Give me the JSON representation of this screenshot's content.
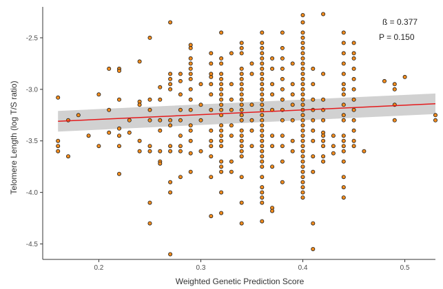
{
  "chart_data": {
    "type": "scatter",
    "title": "",
    "xlabel": "Weighted Genetic Prediction Score",
    "ylabel": "Telomere Length (log T/S ratio)",
    "xlim": [
      0.145,
      0.53
    ],
    "ylim": [
      -4.65,
      -2.2
    ],
    "x_ticks": [
      0.2,
      0.3,
      0.4,
      0.5
    ],
    "y_ticks": [
      -2.5,
      -3.0,
      -3.5,
      -4.0,
      -4.5
    ],
    "x_tick_labels": [
      "0.2",
      "0.3",
      "0.4",
      "0.5"
    ],
    "y_tick_labels": [
      "-2.5",
      "-3.0",
      "-3.5",
      "-4.0",
      "-4.5"
    ],
    "grid": false,
    "annotations": [
      "ß = 0.377",
      "P = 0.150"
    ],
    "regression": {
      "x": [
        0.16,
        0.53
      ],
      "y": [
        -3.31,
        -3.14
      ],
      "ci_lower": [
        -3.41,
        -3.24
      ],
      "ci_upper": [
        -3.21,
        -3.04
      ],
      "line_color": "#e41a1c",
      "band_color": "#cccccc"
    },
    "point_color": "#f28c1e",
    "point_edge_color": "#1a1a1a",
    "points": [
      [
        0.16,
        -3.08
      ],
      [
        0.16,
        -3.5
      ],
      [
        0.16,
        -3.55
      ],
      [
        0.16,
        -3.6
      ],
      [
        0.17,
        -3.3
      ],
      [
        0.17,
        -3.65
      ],
      [
        0.18,
        -3.25
      ],
      [
        0.19,
        -3.45
      ],
      [
        0.2,
        -3.05
      ],
      [
        0.2,
        -3.55
      ],
      [
        0.21,
        -2.8
      ],
      [
        0.21,
        -3.2
      ],
      [
        0.21,
        -3.42
      ],
      [
        0.22,
        -2.8
      ],
      [
        0.22,
        -2.82
      ],
      [
        0.22,
        -3.1
      ],
      [
        0.22,
        -3.38
      ],
      [
        0.22,
        -3.45
      ],
      [
        0.22,
        -3.55
      ],
      [
        0.22,
        -3.82
      ],
      [
        0.23,
        -3.3
      ],
      [
        0.23,
        -3.42
      ],
      [
        0.24,
        -2.73
      ],
      [
        0.24,
        -3.12
      ],
      [
        0.24,
        -3.15
      ],
      [
        0.24,
        -3.5
      ],
      [
        0.24,
        -3.6
      ],
      [
        0.25,
        -2.5
      ],
      [
        0.25,
        -3.1
      ],
      [
        0.25,
        -3.2
      ],
      [
        0.25,
        -3.3
      ],
      [
        0.25,
        -3.55
      ],
      [
        0.25,
        -3.6
      ],
      [
        0.25,
        -4.1
      ],
      [
        0.25,
        -4.3
      ],
      [
        0.26,
        -2.98
      ],
      [
        0.26,
        -3.1
      ],
      [
        0.26,
        -3.3
      ],
      [
        0.26,
        -3.4
      ],
      [
        0.26,
        -3.6
      ],
      [
        0.26,
        -3.7
      ],
      [
        0.26,
        -3.72
      ],
      [
        0.27,
        -2.35
      ],
      [
        0.27,
        -2.85
      ],
      [
        0.27,
        -2.9
      ],
      [
        0.27,
        -2.95
      ],
      [
        0.27,
        -3.0
      ],
      [
        0.27,
        -3.3
      ],
      [
        0.27,
        -3.35
      ],
      [
        0.27,
        -3.55
      ],
      [
        0.27,
        -3.6
      ],
      [
        0.27,
        -3.9
      ],
      [
        0.27,
        -4.0
      ],
      [
        0.27,
        -4.6
      ],
      [
        0.28,
        -2.85
      ],
      [
        0.28,
        -2.92
      ],
      [
        0.28,
        -3.05
      ],
      [
        0.28,
        -3.2
      ],
      [
        0.28,
        -3.3
      ],
      [
        0.28,
        -3.45
      ],
      [
        0.28,
        -3.55
      ],
      [
        0.28,
        -3.6
      ],
      [
        0.28,
        -3.85
      ],
      [
        0.29,
        -2.57
      ],
      [
        0.29,
        -2.6
      ],
      [
        0.29,
        -2.7
      ],
      [
        0.29,
        -2.75
      ],
      [
        0.29,
        -2.8
      ],
      [
        0.29,
        -2.85
      ],
      [
        0.29,
        -2.9
      ],
      [
        0.29,
        -3.0
      ],
      [
        0.29,
        -3.1
      ],
      [
        0.29,
        -3.2
      ],
      [
        0.29,
        -3.35
      ],
      [
        0.29,
        -3.4
      ],
      [
        0.29,
        -3.5
      ],
      [
        0.29,
        -3.62
      ],
      [
        0.29,
        -3.8
      ],
      [
        0.3,
        -2.95
      ],
      [
        0.3,
        -3.15
      ],
      [
        0.3,
        -3.3
      ],
      [
        0.3,
        -3.6
      ],
      [
        0.31,
        -2.65
      ],
      [
        0.31,
        -2.75
      ],
      [
        0.31,
        -2.85
      ],
      [
        0.31,
        -2.88
      ],
      [
        0.31,
        -2.95
      ],
      [
        0.31,
        -3.05
      ],
      [
        0.31,
        -3.2
      ],
      [
        0.31,
        -3.4
      ],
      [
        0.31,
        -3.5
      ],
      [
        0.31,
        -3.55
      ],
      [
        0.31,
        -3.65
      ],
      [
        0.31,
        -3.85
      ],
      [
        0.31,
        -4.23
      ],
      [
        0.32,
        -2.45
      ],
      [
        0.32,
        -2.7
      ],
      [
        0.32,
        -2.75
      ],
      [
        0.32,
        -2.85
      ],
      [
        0.32,
        -2.9
      ],
      [
        0.32,
        -2.95
      ],
      [
        0.32,
        -3.0
      ],
      [
        0.32,
        -3.05
      ],
      [
        0.32,
        -3.1
      ],
      [
        0.32,
        -3.15
      ],
      [
        0.32,
        -3.2
      ],
      [
        0.32,
        -3.25
      ],
      [
        0.32,
        -3.35
      ],
      [
        0.32,
        -3.4
      ],
      [
        0.32,
        -3.45
      ],
      [
        0.32,
        -3.5
      ],
      [
        0.32,
        -3.55
      ],
      [
        0.32,
        -3.7
      ],
      [
        0.32,
        -3.75
      ],
      [
        0.32,
        -3.8
      ],
      [
        0.32,
        -4.0
      ],
      [
        0.32,
        -4.2
      ],
      [
        0.33,
        -2.65
      ],
      [
        0.33,
        -2.95
      ],
      [
        0.33,
        -3.1
      ],
      [
        0.33,
        -3.2
      ],
      [
        0.33,
        -3.35
      ],
      [
        0.33,
        -3.45
      ],
      [
        0.33,
        -3.7
      ],
      [
        0.33,
        -3.8
      ],
      [
        0.34,
        -2.55
      ],
      [
        0.34,
        -2.6
      ],
      [
        0.34,
        -2.65
      ],
      [
        0.34,
        -2.8
      ],
      [
        0.34,
        -2.85
      ],
      [
        0.34,
        -2.9
      ],
      [
        0.34,
        -2.95
      ],
      [
        0.34,
        -3.0
      ],
      [
        0.34,
        -3.05
      ],
      [
        0.34,
        -3.1
      ],
      [
        0.34,
        -3.15
      ],
      [
        0.34,
        -3.2
      ],
      [
        0.34,
        -3.25
      ],
      [
        0.34,
        -3.3
      ],
      [
        0.34,
        -3.4
      ],
      [
        0.34,
        -3.45
      ],
      [
        0.34,
        -3.5
      ],
      [
        0.34,
        -3.55
      ],
      [
        0.34,
        -3.6
      ],
      [
        0.34,
        -3.65
      ],
      [
        0.34,
        -3.85
      ],
      [
        0.34,
        -4.1
      ],
      [
        0.34,
        -4.3
      ],
      [
        0.35,
        -2.75
      ],
      [
        0.35,
        -2.85
      ],
      [
        0.35,
        -3.15
      ],
      [
        0.35,
        -3.3
      ],
      [
        0.35,
        -3.4
      ],
      [
        0.35,
        -3.55
      ],
      [
        0.36,
        -2.45
      ],
      [
        0.36,
        -2.55
      ],
      [
        0.36,
        -2.6
      ],
      [
        0.36,
        -2.65
      ],
      [
        0.36,
        -2.7
      ],
      [
        0.36,
        -2.75
      ],
      [
        0.36,
        -2.8
      ],
      [
        0.36,
        -2.85
      ],
      [
        0.36,
        -2.9
      ],
      [
        0.36,
        -2.95
      ],
      [
        0.36,
        -3.0
      ],
      [
        0.36,
        -3.05
      ],
      [
        0.36,
        -3.1
      ],
      [
        0.36,
        -3.15
      ],
      [
        0.36,
        -3.2
      ],
      [
        0.36,
        -3.25
      ],
      [
        0.36,
        -3.3
      ],
      [
        0.36,
        -3.35
      ],
      [
        0.36,
        -3.4
      ],
      [
        0.36,
        -3.45
      ],
      [
        0.36,
        -3.5
      ],
      [
        0.36,
        -3.55
      ],
      [
        0.36,
        -3.6
      ],
      [
        0.36,
        -3.65
      ],
      [
        0.36,
        -3.7
      ],
      [
        0.36,
        -3.75
      ],
      [
        0.36,
        -3.85
      ],
      [
        0.36,
        -3.95
      ],
      [
        0.36,
        -4.0
      ],
      [
        0.36,
        -4.05
      ],
      [
        0.36,
        -4.1
      ],
      [
        0.36,
        -4.28
      ],
      [
        0.37,
        -2.7
      ],
      [
        0.37,
        -2.8
      ],
      [
        0.37,
        -2.95
      ],
      [
        0.37,
        -3.05
      ],
      [
        0.37,
        -3.2
      ],
      [
        0.37,
        -3.45
      ],
      [
        0.37,
        -3.55
      ],
      [
        0.37,
        -3.75
      ],
      [
        0.37,
        -4.15
      ],
      [
        0.37,
        -4.18
      ],
      [
        0.38,
        -2.45
      ],
      [
        0.38,
        -2.6
      ],
      [
        0.38,
        -2.7
      ],
      [
        0.38,
        -2.8
      ],
      [
        0.38,
        -2.9
      ],
      [
        0.38,
        -3.0
      ],
      [
        0.38,
        -3.1
      ],
      [
        0.38,
        -3.2
      ],
      [
        0.38,
        -3.3
      ],
      [
        0.38,
        -3.45
      ],
      [
        0.38,
        -3.55
      ],
      [
        0.38,
        -3.7
      ],
      [
        0.38,
        -3.9
      ],
      [
        0.39,
        -2.75
      ],
      [
        0.39,
        -2.95
      ],
      [
        0.39,
        -3.05
      ],
      [
        0.39,
        -3.15
      ],
      [
        0.39,
        -3.3
      ],
      [
        0.39,
        -3.5
      ],
      [
        0.39,
        -3.6
      ],
      [
        0.4,
        -2.28
      ],
      [
        0.4,
        -2.35
      ],
      [
        0.4,
        -2.45
      ],
      [
        0.4,
        -2.5
      ],
      [
        0.4,
        -2.55
      ],
      [
        0.4,
        -2.6
      ],
      [
        0.4,
        -2.65
      ],
      [
        0.4,
        -2.7
      ],
      [
        0.4,
        -2.75
      ],
      [
        0.4,
        -2.8
      ],
      [
        0.4,
        -2.85
      ],
      [
        0.4,
        -2.9
      ],
      [
        0.4,
        -2.95
      ],
      [
        0.4,
        -3.0
      ],
      [
        0.4,
        -3.05
      ],
      [
        0.4,
        -3.1
      ],
      [
        0.4,
        -3.15
      ],
      [
        0.4,
        -3.2
      ],
      [
        0.4,
        -3.25
      ],
      [
        0.4,
        -3.3
      ],
      [
        0.4,
        -3.35
      ],
      [
        0.4,
        -3.4
      ],
      [
        0.4,
        -3.45
      ],
      [
        0.4,
        -3.5
      ],
      [
        0.4,
        -3.55
      ],
      [
        0.4,
        -3.6
      ],
      [
        0.4,
        -3.65
      ],
      [
        0.4,
        -3.7
      ],
      [
        0.4,
        -3.75
      ],
      [
        0.4,
        -3.8
      ],
      [
        0.4,
        -3.85
      ],
      [
        0.4,
        -3.9
      ],
      [
        0.4,
        -3.95
      ],
      [
        0.4,
        -4.0
      ],
      [
        0.4,
        -4.05
      ],
      [
        0.41,
        -2.8
      ],
      [
        0.41,
        -2.95
      ],
      [
        0.41,
        -3.1
      ],
      [
        0.41,
        -3.2
      ],
      [
        0.41,
        -3.3
      ],
      [
        0.41,
        -3.4
      ],
      [
        0.41,
        -3.5
      ],
      [
        0.41,
        -3.65
      ],
      [
        0.41,
        -3.8
      ],
      [
        0.41,
        -4.3
      ],
      [
        0.41,
        -4.55
      ],
      [
        0.42,
        -2.27
      ],
      [
        0.42,
        -2.85
      ],
      [
        0.42,
        -3.1
      ],
      [
        0.42,
        -3.2
      ],
      [
        0.42,
        -3.3
      ],
      [
        0.42,
        -3.42
      ],
      [
        0.42,
        -3.45
      ],
      [
        0.42,
        -3.5
      ],
      [
        0.42,
        -3.55
      ],
      [
        0.42,
        -3.65
      ],
      [
        0.42,
        -3.7
      ],
      [
        0.43,
        -3.45
      ],
      [
        0.43,
        -3.55
      ],
      [
        0.43,
        -3.62
      ],
      [
        0.44,
        -2.45
      ],
      [
        0.44,
        -2.55
      ],
      [
        0.44,
        -2.65
      ],
      [
        0.44,
        -2.75
      ],
      [
        0.44,
        -2.85
      ],
      [
        0.44,
        -2.95
      ],
      [
        0.44,
        -3.0
      ],
      [
        0.44,
        -3.05
      ],
      [
        0.44,
        -3.15
      ],
      [
        0.44,
        -3.25
      ],
      [
        0.44,
        -3.3
      ],
      [
        0.44,
        -3.45
      ],
      [
        0.44,
        -3.5
      ],
      [
        0.44,
        -3.55
      ],
      [
        0.44,
        -3.6
      ],
      [
        0.44,
        -3.7
      ],
      [
        0.44,
        -3.85
      ],
      [
        0.44,
        -3.95
      ],
      [
        0.44,
        -4.05
      ],
      [
        0.45,
        -2.55
      ],
      [
        0.45,
        -2.65
      ],
      [
        0.45,
        -2.7
      ],
      [
        0.45,
        -2.8
      ],
      [
        0.45,
        -2.9
      ],
      [
        0.45,
        -3.0
      ],
      [
        0.45,
        -3.1
      ],
      [
        0.45,
        -3.2
      ],
      [
        0.45,
        -3.3
      ],
      [
        0.45,
        -3.4
      ],
      [
        0.45,
        -3.5
      ],
      [
        0.45,
        -3.55
      ],
      [
        0.46,
        -3.6
      ],
      [
        0.48,
        -2.92
      ],
      [
        0.49,
        -2.95
      ],
      [
        0.49,
        -3.0
      ],
      [
        0.49,
        -3.15
      ],
      [
        0.49,
        -3.3
      ],
      [
        0.5,
        -2.88
      ],
      [
        0.53,
        -3.25
      ],
      [
        0.53,
        -3.3
      ]
    ]
  }
}
